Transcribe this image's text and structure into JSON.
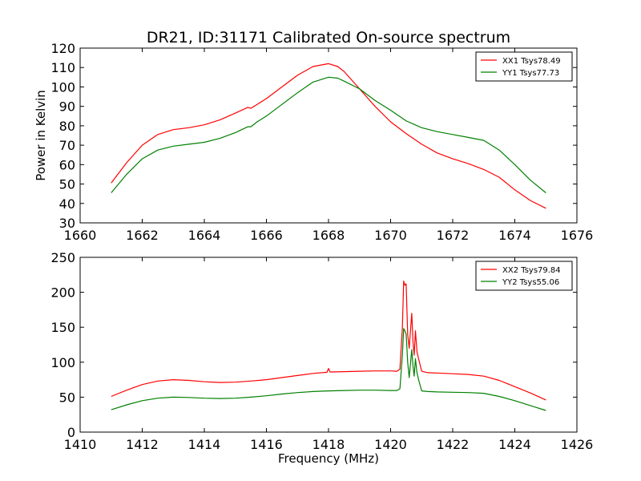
{
  "title": "DR21, ID:31171 Calibrated On-source spectrum",
  "chart_data": [
    {
      "type": "line",
      "ylabel": "Power in Kelvin",
      "xlabel": "",
      "xlim": [
        1660,
        1676
      ],
      "ylim": [
        30,
        120
      ],
      "xticks": [
        "1660",
        "1662",
        "1664",
        "1666",
        "1668",
        "1670",
        "1672",
        "1674",
        "1676"
      ],
      "yticks": [
        "30",
        "40",
        "50",
        "60",
        "70",
        "80",
        "90",
        "100",
        "110",
        "120"
      ],
      "legend_position": "top-right",
      "series": [
        {
          "name": "XX1 Tsys78.49",
          "color": "#ff0000",
          "x": [
            1661.0,
            1661.5,
            1662.0,
            1662.5,
            1663.0,
            1663.5,
            1664.0,
            1664.5,
            1665.0,
            1665.4,
            1665.5,
            1665.7,
            1666.0,
            1666.5,
            1667.0,
            1667.5,
            1668.0,
            1668.3,
            1668.5,
            1669.0,
            1669.5,
            1670.0,
            1670.5,
            1671.0,
            1671.5,
            1672.0,
            1672.5,
            1673.0,
            1673.5,
            1674.0,
            1674.5,
            1675.0
          ],
          "y": [
            50.5,
            61,
            70,
            75.5,
            78,
            79,
            80.5,
            83,
            86.5,
            89.5,
            89,
            91,
            94,
            100,
            106,
            110.5,
            112,
            110.5,
            108,
            99,
            90,
            82,
            76,
            70.5,
            66,
            63,
            60.5,
            57.5,
            53.5,
            47,
            41.5,
            37.5
          ]
        },
        {
          "name": "YY1 Tsys77.73",
          "color": "#008000",
          "x": [
            1661.0,
            1661.5,
            1662.0,
            1662.5,
            1663.0,
            1663.5,
            1664.0,
            1664.5,
            1665.0,
            1665.4,
            1665.5,
            1665.7,
            1666.0,
            1666.5,
            1667.0,
            1667.5,
            1668.0,
            1668.3,
            1668.5,
            1669.0,
            1669.5,
            1670.0,
            1670.5,
            1671.0,
            1671.5,
            1672.0,
            1672.5,
            1673.0,
            1673.5,
            1674.0,
            1674.5,
            1675.0
          ],
          "y": [
            45.5,
            55,
            63,
            67.5,
            69.5,
            70.5,
            71.5,
            73.5,
            76.5,
            79.5,
            79.5,
            82,
            85,
            91,
            97,
            102.5,
            105,
            104.5,
            103,
            99,
            93,
            88,
            82.5,
            79,
            77,
            75.5,
            74,
            72.5,
            67.5,
            60,
            52,
            45.5
          ]
        }
      ]
    },
    {
      "type": "line",
      "ylabel": "",
      "xlabel": "Frequency (MHz)",
      "xlim": [
        1410,
        1426
      ],
      "ylim": [
        0,
        250
      ],
      "xticks": [
        "1410",
        "1412",
        "1414",
        "1416",
        "1418",
        "1420",
        "1422",
        "1424",
        "1426"
      ],
      "yticks": [
        "0",
        "50",
        "100",
        "150",
        "200",
        "250"
      ],
      "legend_position": "top-right",
      "series": [
        {
          "name": "XX2 Tsys79.84",
          "color": "#ff0000",
          "x": [
            1411.0,
            1411.5,
            1412.0,
            1412.5,
            1413.0,
            1413.5,
            1414.0,
            1414.5,
            1415.0,
            1415.5,
            1416.0,
            1416.5,
            1417.0,
            1417.5,
            1417.95,
            1418.0,
            1418.05,
            1418.5,
            1419.0,
            1419.5,
            1420.0,
            1420.2,
            1420.3,
            1420.38,
            1420.42,
            1420.46,
            1420.5,
            1420.55,
            1420.6,
            1420.68,
            1420.72,
            1420.76,
            1420.8,
            1420.85,
            1420.9,
            1421.0,
            1421.2,
            1421.5,
            1422.0,
            1422.5,
            1423.0,
            1423.5,
            1424.0,
            1424.5,
            1425.0
          ],
          "y": [
            51,
            60,
            68,
            73,
            75,
            74,
            72,
            71,
            71.5,
            73,
            75,
            78,
            81,
            84,
            85.5,
            91,
            86,
            86.5,
            87,
            87.5,
            87.5,
            87,
            90,
            150,
            216,
            210,
            212,
            140,
            120,
            170,
            130,
            110,
            145,
            115,
            105,
            87,
            85,
            84.5,
            83.5,
            82.5,
            80,
            74,
            65,
            56,
            46
          ]
        },
        {
          "name": "YY2 Tsys55.06",
          "color": "#008000",
          "x": [
            1411.0,
            1411.5,
            1412.0,
            1412.5,
            1413.0,
            1413.5,
            1414.0,
            1414.5,
            1415.0,
            1415.5,
            1416.0,
            1416.5,
            1417.0,
            1417.5,
            1418.0,
            1418.5,
            1419.0,
            1419.5,
            1420.0,
            1420.2,
            1420.3,
            1420.38,
            1420.42,
            1420.46,
            1420.5,
            1420.55,
            1420.6,
            1420.68,
            1420.72,
            1420.76,
            1420.8,
            1420.85,
            1420.9,
            1421.0,
            1421.2,
            1421.5,
            1422.0,
            1422.5,
            1423.0,
            1423.5,
            1424.0,
            1424.5,
            1425.0
          ],
          "y": [
            32,
            39,
            45,
            48.5,
            50,
            49.5,
            48.5,
            48,
            48.5,
            50,
            52,
            54.5,
            56.5,
            58,
            59,
            59.5,
            60,
            60,
            59.5,
            59.5,
            62,
            110,
            148,
            145,
            140,
            100,
            78,
            118,
            95,
            80,
            105,
            85,
            75,
            59,
            58,
            57.5,
            57,
            56.5,
            55.5,
            51,
            45,
            38,
            31
          ]
        }
      ]
    }
  ]
}
